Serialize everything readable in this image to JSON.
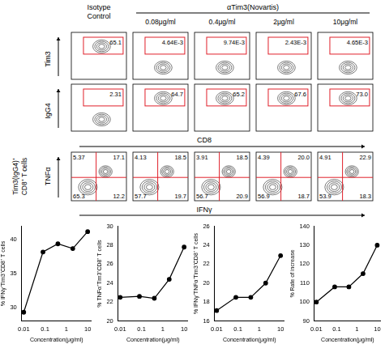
{
  "header": {
    "isotype_lines": [
      "Isotype",
      "Control"
    ],
    "antibody": "αTim3(Novartis)",
    "concentrations": [
      "0.08μg/ml",
      "0.4μg/ml",
      "2μg/ml",
      "10μg/ml"
    ]
  },
  "flow": {
    "gate_rows": [
      {
        "y_label": "Tim3",
        "gates": [
          "65.1",
          "4.64E-3",
          "9.74E-3",
          "2.43E-3",
          "4.65E-3"
        ]
      },
      {
        "y_label": "IgG4",
        "gates": [
          "2.31",
          "64.7",
          "65.2",
          "67.6",
          "73.0"
        ]
      }
    ],
    "gate_x_label": "CD8",
    "quadrant_row": {
      "row_label_lines": [
        "Tim3(IgG4)⁺",
        "CD8⁺ T cells"
      ],
      "y_label": "TNFα",
      "x_label": "IFNγ",
      "panels": [
        {
          "upper_left": "5.37",
          "upper_right": "17.1",
          "lower_left": "65.3",
          "lower_right": "12.2"
        },
        {
          "upper_left": "4.13",
          "upper_right": "18.5",
          "lower_left": "57.7",
          "lower_right": "19.7"
        },
        {
          "upper_left": "3.91",
          "upper_right": "18.5",
          "lower_left": "56.7",
          "lower_right": "20.9"
        },
        {
          "upper_left": "4.39",
          "upper_right": "20.0",
          "lower_left": "56.9",
          "lower_right": "18.7"
        },
        {
          "upper_left": "4.91",
          "upper_right": "22.9",
          "lower_left": "53.9",
          "lower_right": "18.3"
        }
      ]
    }
  },
  "chart_data": [
    {
      "type": "line",
      "x_label": "Concentration(μg/ml)",
      "y_label": "% IFNγ⁺Tim3⁺CD8⁺ T cells",
      "x": [
        0.01,
        0.08,
        0.4,
        2,
        10
      ],
      "values": [
        29.3,
        38.2,
        39.4,
        38.7,
        41.2
      ],
      "log": "x",
      "xlim": [
        0.008,
        15
      ],
      "xticks": [
        0.01,
        0.1,
        1,
        10
      ],
      "ylim": [
        28,
        42
      ],
      "yticks": [
        30,
        35,
        40
      ],
      "color": "#000000",
      "marker": "circle",
      "grid": false
    },
    {
      "type": "line",
      "x_label": "Concentration(μg/ml)",
      "y_label": "% TNFα⁺Tim3⁺CD8⁺ T cells",
      "x": [
        0.01,
        0.08,
        0.4,
        2,
        10
      ],
      "values": [
        22.5,
        22.6,
        22.4,
        24.4,
        27.8
      ],
      "log": "x",
      "xlim": [
        0.008,
        15
      ],
      "xticks": [
        0.01,
        0.1,
        1,
        10
      ],
      "ylim": [
        20,
        30
      ],
      "yticks": [
        20,
        22,
        24,
        26,
        28,
        30
      ],
      "color": "#000000",
      "marker": "circle",
      "grid": false
    },
    {
      "type": "line",
      "x_label": "Concentration(μg/ml)",
      "y_label": "% IFNγ⁺TNFα⁺Tim3⁺CD8⁺ T cells",
      "x": [
        0.01,
        0.08,
        0.4,
        2,
        10
      ],
      "values": [
        17.1,
        18.5,
        18.5,
        20.0,
        22.9
      ],
      "log": "x",
      "xlim": [
        0.008,
        15
      ],
      "xticks": [
        0.01,
        0.1,
        1,
        10
      ],
      "ylim": [
        16,
        26
      ],
      "yticks": [
        16,
        18,
        20,
        22,
        24,
        26
      ],
      "color": "#000000",
      "marker": "circle",
      "grid": false
    },
    {
      "type": "line",
      "x_label": "Concentration(μg/ml)",
      "y_label": "% Rate of increase",
      "x": [
        0.01,
        0.08,
        0.4,
        2,
        10
      ],
      "values": [
        100,
        108,
        108,
        115,
        130
      ],
      "log": "x",
      "xlim": [
        0.008,
        15
      ],
      "xticks": [
        0.01,
        0.1,
        1,
        10
      ],
      "ylim": [
        90,
        140
      ],
      "yticks": [
        90,
        100,
        110,
        120,
        130,
        140
      ],
      "color": "#000000",
      "marker": "circle",
      "grid": false
    }
  ]
}
